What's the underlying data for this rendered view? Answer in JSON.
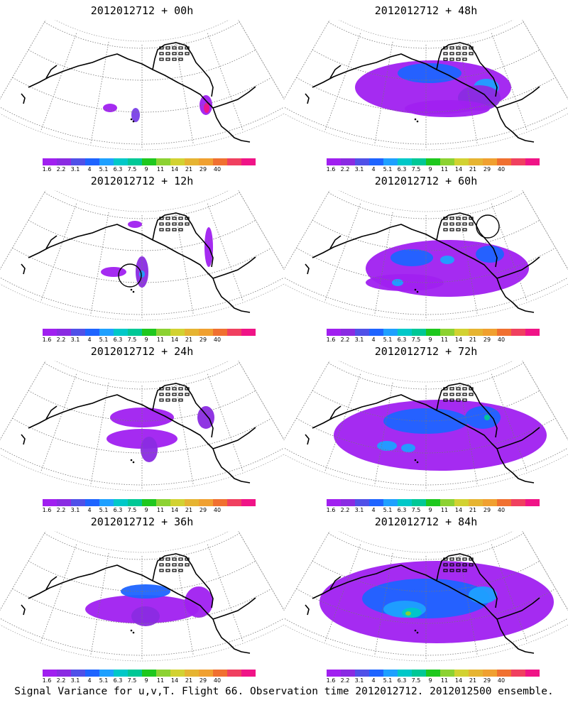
{
  "panels": [
    {
      "title": "2012012712 + 00h",
      "lead_hours": 0
    },
    {
      "title": "2012012712 + 48h",
      "lead_hours": 48
    },
    {
      "title": "2012012712 + 12h",
      "lead_hours": 12
    },
    {
      "title": "2012012712 + 60h",
      "lead_hours": 60
    },
    {
      "title": "2012012712 + 24h",
      "lead_hours": 24
    },
    {
      "title": "2012012712 + 72h",
      "lead_hours": 72
    },
    {
      "title": "2012012712 + 36h",
      "lead_hours": 36
    },
    {
      "title": "2012012712 + 84h",
      "lead_hours": 84
    }
  ],
  "colorbar": {
    "labels": [
      "1.6",
      "2.2",
      "3.1",
      "4",
      "5.1",
      "6.3",
      "7.5",
      "9",
      "11",
      "14",
      "21",
      "29",
      "40"
    ],
    "colors": [
      "#a020f0",
      "#8a2be2",
      "#5050e8",
      "#1e64ff",
      "#1ea0ff",
      "#00c8c8",
      "#00c896",
      "#1ec81e",
      "#8cd232",
      "#d2d232",
      "#e6b432",
      "#f0a030",
      "#f07030",
      "#f04060",
      "#f01487"
    ]
  },
  "caption": "Signal Variance for u,v,T. Flight 66. Observation time 2012012712. 2012012500 ensemble."
}
